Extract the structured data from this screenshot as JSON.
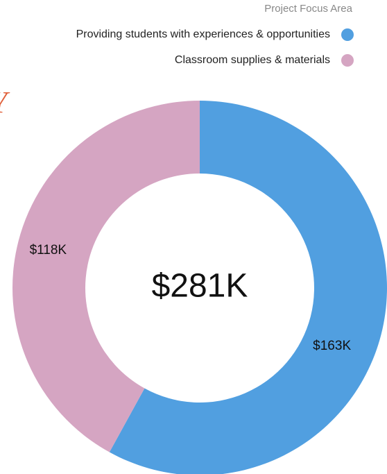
{
  "chart_data": {
    "type": "donut",
    "legend_title": "Project Focus Area",
    "edge_text": "Y",
    "center_label": "$281K",
    "categories": [
      "Providing students with experiences & opportunities",
      "Classroom supplies & materials"
    ],
    "values": [
      163,
      118
    ],
    "value_labels": [
      "$163K",
      "$118K"
    ],
    "colors": [
      "#519fe0",
      "#d5a5c2"
    ],
    "legend": "top-right"
  }
}
